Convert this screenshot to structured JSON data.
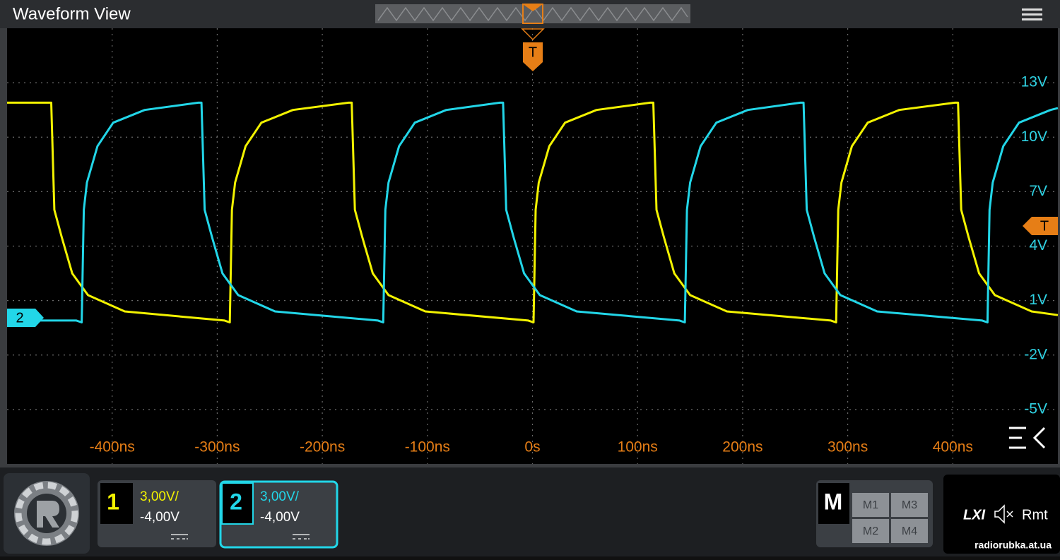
{
  "header": {
    "title": "Waveform View"
  },
  "markers": {
    "trigger": "T",
    "channel": "2"
  },
  "chart_data": {
    "type": "line",
    "xlim": [
      -500,
      500
    ],
    "ylim": [
      -8,
      16
    ],
    "xticks": [
      {
        "value": -400,
        "label": "-400ns"
      },
      {
        "value": -300,
        "label": "-300ns"
      },
      {
        "value": -200,
        "label": "-200ns"
      },
      {
        "value": -100,
        "label": "-100ns"
      },
      {
        "value": 0,
        "label": "0s"
      },
      {
        "value": 100,
        "label": "100ns"
      },
      {
        "value": 200,
        "label": "200ns"
      },
      {
        "value": 300,
        "label": "300ns"
      },
      {
        "value": 400,
        "label": "400ns"
      }
    ],
    "yticks": [
      {
        "value": 13,
        "label": "13V"
      },
      {
        "value": 10,
        "label": "10V"
      },
      {
        "value": 7,
        "label": "7V"
      },
      {
        "value": 4,
        "label": "4V"
      },
      {
        "value": 1,
        "label": "1V"
      },
      {
        "value": -2,
        "label": "-2V"
      },
      {
        "value": -5,
        "label": "-5V"
      }
    ],
    "grid": true,
    "series": [
      {
        "color": "#f2f200",
        "x": [
          -500,
          -461,
          -458,
          -455,
          -448,
          -438,
          -423,
          -388,
          -293,
          -288,
          -286,
          -283,
          -273,
          -258,
          -228,
          -175,
          -172,
          -169,
          -162,
          -152,
          -137,
          -102,
          -4,
          1,
          3,
          6,
          16,
          31,
          61,
          112,
          115,
          118,
          125,
          135,
          150,
          185,
          284,
          289,
          291,
          294,
          304,
          319,
          349,
          402,
          405,
          408,
          415,
          425,
          440,
          475,
          500
        ],
        "values": [
          11.9,
          11.9,
          11.9,
          6,
          4.5,
          2.5,
          1.3,
          0.4,
          -0.1,
          -0.2,
          6,
          7.5,
          9.5,
          10.8,
          11.5,
          11.9,
          11.9,
          6,
          4.5,
          2.5,
          1.3,
          0.4,
          -0.1,
          -0.2,
          6,
          7.5,
          9.5,
          10.8,
          11.5,
          11.9,
          11.9,
          6,
          4.5,
          2.5,
          1.3,
          0.4,
          -0.1,
          -0.2,
          6,
          7.5,
          9.5,
          10.8,
          11.5,
          11.9,
          11.9,
          6,
          4.5,
          2.5,
          1.3,
          0.4,
          0.2
        ]
      },
      {
        "color": "#22d6e8",
        "x": [
          -500,
          -434,
          -429,
          -427,
          -424,
          -414,
          -399,
          -369,
          -318,
          -315,
          -312,
          -305,
          -295,
          -280,
          -245,
          -147,
          -142,
          -140,
          -137,
          -127,
          -112,
          -82,
          -31,
          -28,
          -25,
          -18,
          -8,
          7,
          42,
          140,
          145,
          147,
          150,
          160,
          175,
          205,
          255,
          258,
          261,
          268,
          278,
          293,
          328,
          428,
          433,
          435,
          438,
          448,
          463,
          493,
          500
        ],
        "values": [
          -0.1,
          -0.1,
          -0.2,
          6,
          7.5,
          9.5,
          10.8,
          11.5,
          11.9,
          11.9,
          6,
          4.5,
          2.5,
          1.3,
          0.4,
          -0.1,
          -0.2,
          6,
          7.5,
          9.5,
          10.8,
          11.5,
          11.9,
          11.9,
          6,
          4.5,
          2.5,
          1.3,
          0.4,
          -0.1,
          -0.2,
          6,
          7.5,
          9.5,
          10.8,
          11.5,
          11.9,
          11.9,
          6,
          4.5,
          2.5,
          1.3,
          0.4,
          -0.1,
          -0.2,
          6,
          7.5,
          9.5,
          10.8,
          11.5,
          11.6
        ]
      }
    ]
  },
  "channels": [
    {
      "number": "1",
      "scale": "3,00V/",
      "offset": "-4,00V"
    },
    {
      "number": "2",
      "scale": "3,00V/",
      "offset": "-4,00V"
    }
  ],
  "math": {
    "label": "M",
    "items": [
      "M1",
      "M3",
      "M2",
      "M4"
    ]
  },
  "status": {
    "lxi": "LXI",
    "remote": "Rmt"
  },
  "watermark": "radiorubka.at.ua"
}
